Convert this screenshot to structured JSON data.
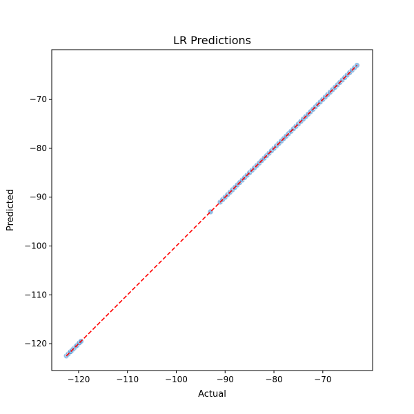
{
  "chart_data": {
    "type": "scatter",
    "title": "LR Predictions",
    "xlabel": "Actual",
    "ylabel": "Predicted",
    "xlim": [
      -125.5,
      -59.8
    ],
    "ylim": [
      -125.5,
      -59.8
    ],
    "xticks": [
      -120,
      -110,
      -100,
      -90,
      -80,
      -70
    ],
    "yticks": [
      -120,
      -110,
      -100,
      -90,
      -80,
      -70
    ],
    "xtick_labels": [
      "−120",
      "−110",
      "−100",
      "−90",
      "−80",
      "−70"
    ],
    "ytick_labels": [
      "−120",
      "−110",
      "−100",
      "−90",
      "−80",
      "−70"
    ],
    "grid": false,
    "reference_line": {
      "from": [
        -122.5,
        -122.5
      ],
      "to": [
        -63.0,
        -63.0
      ],
      "style": "dashed",
      "color": "#ff0000"
    },
    "series": [
      {
        "color": "#5b9bd5",
        "points": [
          [
            -122.5,
            -122.5
          ],
          [
            -122.2,
            -122.2
          ],
          [
            -122.0,
            -122.0
          ],
          [
            -121.8,
            -121.8
          ],
          [
            -121.6,
            -121.6
          ],
          [
            -121.3,
            -121.3
          ],
          [
            -121.0,
            -121.0
          ],
          [
            -120.7,
            -120.7
          ],
          [
            -120.5,
            -120.5
          ],
          [
            -120.3,
            -120.3
          ],
          [
            -120.0,
            -120.0
          ],
          [
            -119.8,
            -119.8
          ],
          [
            -119.5,
            -119.5
          ],
          [
            -93.0,
            -93.0
          ],
          [
            -91.0,
            -91.0
          ],
          [
            -90.5,
            -90.5
          ],
          [
            -90.0,
            -90.0
          ],
          [
            -89.5,
            -89.5
          ],
          [
            -89.0,
            -89.0
          ],
          [
            -88.5,
            -88.5
          ],
          [
            -88.0,
            -88.0
          ],
          [
            -87.5,
            -87.5
          ],
          [
            -87.0,
            -87.0
          ],
          [
            -86.5,
            -86.5
          ],
          [
            -86.0,
            -86.0
          ],
          [
            -85.5,
            -85.5
          ],
          [
            -85.0,
            -85.0
          ],
          [
            -84.5,
            -84.5
          ],
          [
            -84.0,
            -84.0
          ],
          [
            -83.5,
            -83.5
          ],
          [
            -83.0,
            -83.0
          ],
          [
            -82.5,
            -82.5
          ],
          [
            -82.0,
            -82.0
          ],
          [
            -81.5,
            -81.5
          ],
          [
            -81.0,
            -81.0
          ],
          [
            -80.5,
            -80.5
          ],
          [
            -80.0,
            -80.0
          ],
          [
            -79.5,
            -79.5
          ],
          [
            -79.0,
            -79.0
          ],
          [
            -78.5,
            -78.5
          ],
          [
            -78.0,
            -78.0
          ],
          [
            -77.5,
            -77.5
          ],
          [
            -77.0,
            -77.0
          ],
          [
            -76.5,
            -76.5
          ],
          [
            -76.0,
            -76.0
          ],
          [
            -75.5,
            -75.5
          ],
          [
            -75.0,
            -75.0
          ],
          [
            -74.5,
            -74.5
          ],
          [
            -74.0,
            -74.0
          ],
          [
            -73.5,
            -73.5
          ],
          [
            -73.0,
            -73.0
          ],
          [
            -72.5,
            -72.5
          ],
          [
            -72.0,
            -72.0
          ],
          [
            -71.5,
            -71.5
          ],
          [
            -71.0,
            -71.0
          ],
          [
            -70.5,
            -70.5
          ],
          [
            -70.0,
            -70.0
          ],
          [
            -69.5,
            -69.5
          ],
          [
            -69.0,
            -69.0
          ],
          [
            -68.5,
            -68.5
          ],
          [
            -68.0,
            -68.0
          ],
          [
            -67.5,
            -67.5
          ],
          [
            -67.0,
            -67.0
          ],
          [
            -66.5,
            -66.5
          ],
          [
            -66.0,
            -66.0
          ],
          [
            -65.5,
            -65.5
          ],
          [
            -65.0,
            -65.0
          ],
          [
            -64.5,
            -64.5
          ],
          [
            -64.0,
            -64.0
          ],
          [
            -63.5,
            -63.5
          ],
          [
            -63.0,
            -63.0
          ]
        ]
      }
    ]
  }
}
